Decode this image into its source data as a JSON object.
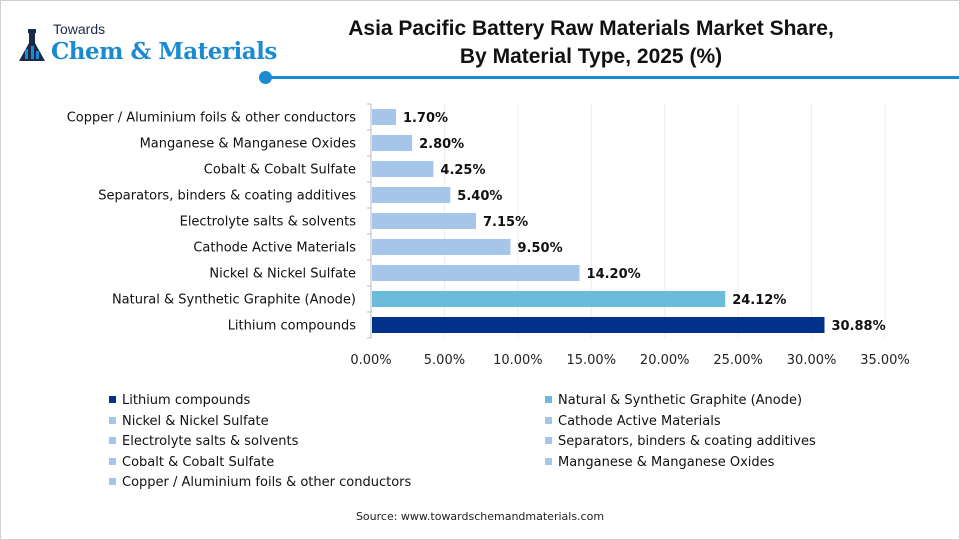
{
  "logo": {
    "line1": "Towards",
    "line2": "Chem & Materials"
  },
  "title_line1": "Asia Pacific Battery Raw Materials Market Share,",
  "title_line2": "By Material Type, 2025 (%)",
  "source": "Source: www.towardschemandmaterials.com",
  "chart_data": {
    "type": "bar",
    "orientation": "horizontal",
    "title": "Asia Pacific Battery Raw Materials Market Share, By Material Type, 2025 (%)",
    "categories": [
      "Copper / Aluminium foils & other conductors",
      "Manganese & Manganese Oxides",
      "Cobalt & Cobalt Sulfate",
      "Separators, binders & coating additives",
      "Electrolyte salts & solvents",
      "Cathode Active Materials",
      "Nickel & Nickel Sulfate",
      "Natural & Synthetic Graphite (Anode)",
      "Lithium compounds"
    ],
    "values": [
      1.7,
      2.8,
      4.25,
      5.4,
      7.15,
      9.5,
      14.2,
      24.12,
      30.88
    ],
    "data_labels": [
      "1.70%",
      "2.80%",
      "4.25%",
      "5.40%",
      "7.15%",
      "9.50%",
      "14.20%",
      "24.12%",
      "30.88%"
    ],
    "colors": [
      "#a5c6e9",
      "#a5c6e9",
      "#a5c6e9",
      "#a5c6e9",
      "#a5c6e9",
      "#a5c6e9",
      "#a5c6e9",
      "#6bbcdb",
      "#003289"
    ],
    "xlim": [
      0,
      35
    ],
    "xticks": [
      "0.00%",
      "5.00%",
      "10.00%",
      "15.00%",
      "20.00%",
      "25.00%",
      "30.00%",
      "35.00%"
    ],
    "grid": "vertical",
    "legend_position": "bottom",
    "legend": [
      {
        "label": "Lithium compounds",
        "color": "#003289"
      },
      {
        "label": "Natural & Synthetic Graphite (Anode)",
        "color": "#6bbcdb"
      },
      {
        "label": "Nickel & Nickel Sulfate",
        "color": "#a5c6e9"
      },
      {
        "label": "Cathode Active Materials",
        "color": "#a5c6e9"
      },
      {
        "label": "Electrolyte salts & solvents",
        "color": "#a5c6e9"
      },
      {
        "label": "Separators, binders & coating additives",
        "color": "#a5c6e9"
      },
      {
        "label": "Cobalt & Cobalt Sulfate",
        "color": "#a5c6e9"
      },
      {
        "label": "Manganese & Manganese Oxides",
        "color": "#a5c6e9"
      },
      {
        "label": "Copper / Aluminium foils & other conductors",
        "color": "#a5c6e9"
      }
    ]
  }
}
